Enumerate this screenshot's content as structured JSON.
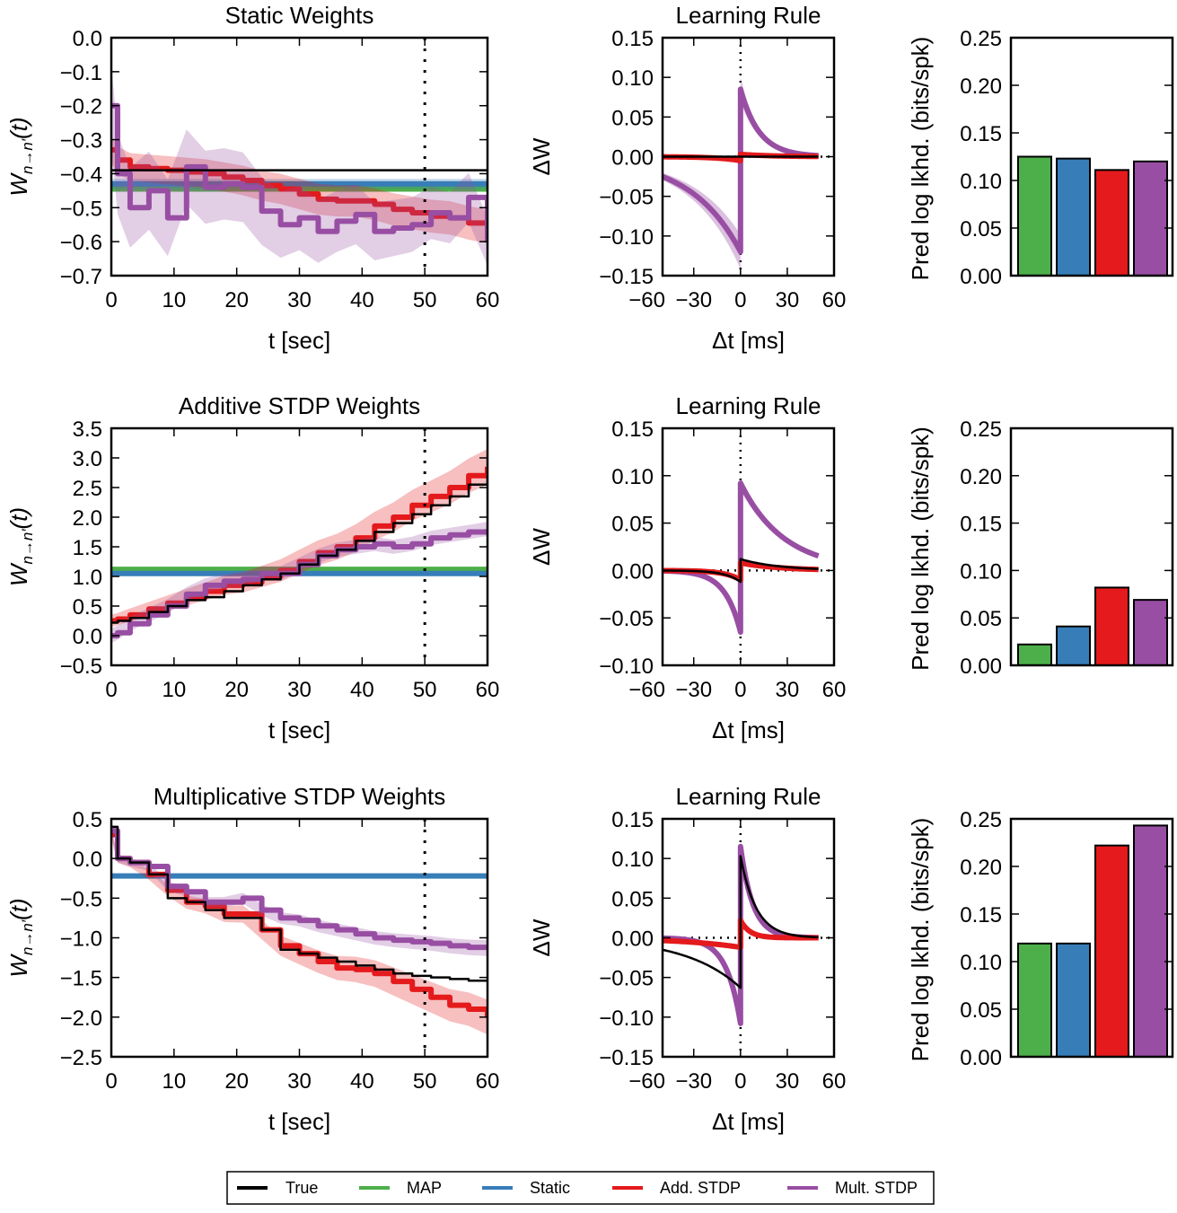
{
  "legend": {
    "items": [
      {
        "label": "True",
        "color": "#000000"
      },
      {
        "label": "MAP",
        "color": "#4daf4a"
      },
      {
        "label": "Static",
        "color": "#377eb8"
      },
      {
        "label": "Add. STDP",
        "color": "#e41a1c"
      },
      {
        "label": "Mult. STDP",
        "color": "#984ea3"
      }
    ]
  },
  "chart_data": [
    {
      "type": "line",
      "row": 0,
      "col": "weights",
      "title": "Static Weights",
      "xlabel": "t [sec]",
      "ylabel": {
        "main": "W",
        "sub": "n→n′",
        "suffix": "(t)"
      },
      "xlim": [
        0,
        60
      ],
      "ylim": [
        -0.7,
        0.0
      ],
      "xticks": [
        0,
        10,
        20,
        30,
        40,
        50,
        60
      ],
      "xticklabels": [
        "0",
        "10",
        "20",
        "30",
        "40",
        "50",
        "60"
      ],
      "yticks": [
        0,
        -0.1,
        -0.2,
        -0.3,
        -0.4,
        -0.5,
        -0.6,
        -0.7
      ],
      "yticklabels": [
        "0.0",
        "−0.1",
        "−0.2",
        "−0.3",
        "−0.4",
        "−0.5",
        "−0.6",
        "−0.7"
      ],
      "vline": 50,
      "x": [
        0,
        1,
        3,
        6,
        9,
        12,
        15,
        18,
        21,
        24,
        27,
        30,
        33,
        36,
        39,
        42,
        45,
        48,
        51,
        54,
        57,
        60
      ],
      "series": [
        {
          "name": "MAP",
          "color": "#4daf4a",
          "constant": -0.445
        },
        {
          "name": "Static",
          "color": "#377eb8",
          "constant": -0.43,
          "band": [
            0.015,
            0.015
          ]
        },
        {
          "name": "Add. STDP",
          "color": "#e41a1c",
          "band": [
            0.04,
            0.05
          ],
          "values": [
            -0.33,
            -0.36,
            -0.38,
            -0.385,
            -0.39,
            -0.395,
            -0.4,
            -0.41,
            -0.42,
            -0.435,
            -0.445,
            -0.46,
            -0.475,
            -0.48,
            -0.48,
            -0.49,
            -0.505,
            -0.515,
            -0.525,
            -0.53,
            -0.545,
            -0.555
          ]
        },
        {
          "name": "Mult. STDP",
          "color": "#984ea3",
          "band": [
            0.12,
            0.07
          ],
          "values": [
            -0.2,
            -0.4,
            -0.5,
            -0.45,
            -0.53,
            -0.38,
            -0.44,
            -0.43,
            -0.44,
            -0.51,
            -0.55,
            -0.53,
            -0.57,
            -0.54,
            -0.52,
            -0.57,
            -0.56,
            -0.55,
            -0.515,
            -0.53,
            -0.47,
            -0.6
          ]
        },
        {
          "name": "True",
          "color": "#000000",
          "constant": -0.39
        }
      ]
    },
    {
      "type": "line",
      "row": 0,
      "col": "rule",
      "title": "Learning Rule",
      "xlabel": "Δt [ms]",
      "ylabel": "ΔW",
      "xlim": [
        -50,
        60
      ],
      "ylim": [
        -0.15,
        0.15
      ],
      "xticks": [
        -60,
        -30,
        0,
        30,
        60
      ],
      "xticklabels": [
        "−60",
        "−30",
        "0",
        "30",
        "60"
      ],
      "yticks": [
        0.15,
        0.1,
        0.05,
        0.0,
        -0.05,
        -0.1,
        -0.15
      ],
      "yticklabels": [
        "0.15",
        "0.10",
        "0.05",
        "0.00",
        "−0.05",
        "−0.10",
        "−0.15"
      ],
      "series": [
        {
          "name": "Mult. STDP",
          "color": "#984ea3",
          "a_plus": 0.085,
          "tau_plus": 12,
          "a_minus": 0.12,
          "tau_minus": 32,
          "band_frac": 0.18
        },
        {
          "name": "Add. STDP",
          "color": "#e41a1c",
          "a_plus": 0.003,
          "tau_plus": 20,
          "a_minus": 0.005,
          "tau_minus": 15,
          "band_frac": 0.3
        },
        {
          "name": "True",
          "color": "#000000",
          "a_plus": 0,
          "tau_plus": 20,
          "a_minus": 0,
          "tau_minus": 20
        }
      ]
    },
    {
      "type": "bar",
      "row": 0,
      "col": "bars",
      "ylabel": "Pred log lkhd. (bits/spk)",
      "ylim": [
        0,
        0.25
      ],
      "yticks": [
        0,
        0.05,
        0.1,
        0.15,
        0.2,
        0.25
      ],
      "yticklabels": [
        "0.00",
        "0.05",
        "0.10",
        "0.15",
        "0.20",
        "0.25"
      ],
      "categories": [
        "MAP",
        "Static",
        "Add. STDP",
        "Mult. STDP"
      ],
      "colors": [
        "#4daf4a",
        "#377eb8",
        "#e41a1c",
        "#984ea3"
      ],
      "values": [
        0.125,
        0.123,
        0.111,
        0.12
      ]
    },
    {
      "type": "line",
      "row": 1,
      "col": "weights",
      "title": "Additive STDP Weights",
      "xlabel": "t [sec]",
      "ylabel": {
        "main": "W",
        "sub": "n→n′",
        "suffix": "(t)"
      },
      "xlim": [
        0,
        60
      ],
      "ylim": [
        -0.5,
        3.5
      ],
      "xticks": [
        0,
        10,
        20,
        30,
        40,
        50,
        60
      ],
      "xticklabels": [
        "0",
        "10",
        "20",
        "30",
        "40",
        "50",
        "60"
      ],
      "yticks": [
        3.5,
        3.0,
        2.5,
        2.0,
        1.5,
        1.0,
        0.5,
        0.0,
        -0.5
      ],
      "yticklabels": [
        "3.5",
        "3.0",
        "2.5",
        "2.0",
        "1.5",
        "1.0",
        "0.5",
        "0.0",
        "−0.5"
      ],
      "vline": 50,
      "x": [
        0,
        1,
        3,
        6,
        9,
        12,
        15,
        18,
        21,
        24,
        27,
        30,
        33,
        36,
        39,
        42,
        45,
        48,
        51,
        54,
        57,
        60
      ],
      "series": [
        {
          "name": "MAP",
          "color": "#4daf4a",
          "constant": 1.12
        },
        {
          "name": "Static",
          "color": "#377eb8",
          "constant": 1.05,
          "band": [
            0.03,
            0.03
          ]
        },
        {
          "name": "Add. STDP",
          "color": "#e41a1c",
          "band": [
            0.1,
            0.3
          ],
          "values": [
            0.25,
            0.28,
            0.35,
            0.45,
            0.55,
            0.65,
            0.75,
            0.85,
            0.9,
            1.0,
            1.1,
            1.25,
            1.4,
            1.5,
            1.65,
            1.85,
            2.0,
            2.2,
            2.35,
            2.5,
            2.7,
            2.85
          ]
        },
        {
          "name": "Mult. STDP",
          "color": "#984ea3",
          "band": [
            0.12,
            0.12
          ],
          "values": [
            0.0,
            0.05,
            0.2,
            0.35,
            0.5,
            0.7,
            0.85,
            0.92,
            0.95,
            1.05,
            1.05,
            1.2,
            1.35,
            1.45,
            1.5,
            1.55,
            1.5,
            1.55,
            1.65,
            1.7,
            1.75,
            1.8
          ]
        },
        {
          "name": "True",
          "color": "#000000",
          "values": [
            0.22,
            0.25,
            0.3,
            0.4,
            0.5,
            0.6,
            0.65,
            0.75,
            0.85,
            0.95,
            1.05,
            1.2,
            1.35,
            1.45,
            1.6,
            1.75,
            1.9,
            2.05,
            2.2,
            2.35,
            2.55,
            2.7
          ]
        }
      ]
    },
    {
      "type": "line",
      "row": 1,
      "col": "rule",
      "title": "Learning Rule",
      "xlabel": "Δt [ms]",
      "ylabel": "ΔW",
      "xlim": [
        -50,
        60
      ],
      "ylim": [
        -0.1,
        0.15
      ],
      "xticks": [
        -60,
        -30,
        0,
        30,
        60
      ],
      "xticklabels": [
        "−60",
        "−30",
        "0",
        "30",
        "60"
      ],
      "yticks": [
        0.15,
        0.1,
        0.05,
        0.0,
        -0.05,
        -0.1
      ],
      "yticklabels": [
        "0.15",
        "0.10",
        "0.05",
        "0.00",
        "−0.05",
        "−0.10"
      ],
      "series": [
        {
          "name": "Mult. STDP",
          "color": "#984ea3",
          "a_plus": 0.092,
          "tau_plus": 28,
          "a_minus": 0.065,
          "tau_minus": 10,
          "band_frac": 0.08
        },
        {
          "name": "Add. STDP",
          "color": "#e41a1c",
          "a_plus": 0.008,
          "tau_plus": 25,
          "a_minus": 0.01,
          "tau_minus": 10,
          "band_frac": 0.2
        },
        {
          "name": "True",
          "color": "#000000",
          "a_plus": 0.012,
          "tau_plus": 25,
          "a_minus": 0.012,
          "tau_minus": 10
        }
      ]
    },
    {
      "type": "bar",
      "row": 1,
      "col": "bars",
      "ylabel": "Pred log lkhd. (bits/spk)",
      "ylim": [
        0,
        0.25
      ],
      "yticks": [
        0,
        0.05,
        0.1,
        0.15,
        0.2,
        0.25
      ],
      "yticklabels": [
        "0.00",
        "0.05",
        "0.10",
        "0.15",
        "0.20",
        "0.25"
      ],
      "categories": [
        "MAP",
        "Static",
        "Add. STDP",
        "Mult. STDP"
      ],
      "colors": [
        "#4daf4a",
        "#377eb8",
        "#e41a1c",
        "#984ea3"
      ],
      "values": [
        0.022,
        0.041,
        0.082,
        0.069
      ]
    },
    {
      "type": "line",
      "row": 2,
      "col": "weights",
      "title": "Multiplicative STDP Weights",
      "xlabel": "t [sec]",
      "ylabel": {
        "main": "W",
        "sub": "n→n′",
        "suffix": "(t)"
      },
      "xlim": [
        0,
        60
      ],
      "ylim": [
        -2.5,
        0.5
      ],
      "xticks": [
        0,
        10,
        20,
        30,
        40,
        50,
        60
      ],
      "xticklabels": [
        "0",
        "10",
        "20",
        "30",
        "40",
        "50",
        "60"
      ],
      "yticks": [
        0.5,
        0.0,
        -0.5,
        -1.0,
        -1.5,
        -2.0,
        -2.5
      ],
      "yticklabels": [
        "0.5",
        "0.0",
        "−0.5",
        "−1.0",
        "−1.5",
        "−2.0",
        "−2.5"
      ],
      "vline": 50,
      "x": [
        0,
        1,
        3,
        6,
        9,
        12,
        15,
        18,
        21,
        24,
        27,
        30,
        33,
        36,
        39,
        42,
        45,
        48,
        51,
        54,
        57,
        60
      ],
      "series": [
        {
          "name": "Static",
          "color": "#377eb8",
          "constant": -0.22
        },
        {
          "name": "Add. STDP",
          "color": "#e41a1c",
          "band": [
            0.05,
            0.22
          ],
          "values": [
            0.3,
            0.0,
            -0.05,
            -0.2,
            -0.4,
            -0.55,
            -0.6,
            -0.7,
            -0.7,
            -0.9,
            -1.1,
            -1.2,
            -1.3,
            -1.38,
            -1.4,
            -1.45,
            -1.55,
            -1.65,
            -1.75,
            -1.85,
            -1.9,
            -2.0
          ]
        },
        {
          "name": "Mult. STDP",
          "color": "#984ea3",
          "band": [
            0.05,
            0.1
          ],
          "values": [
            0.35,
            0.0,
            -0.05,
            -0.1,
            -0.35,
            -0.42,
            -0.55,
            -0.55,
            -0.5,
            -0.65,
            -0.75,
            -0.78,
            -0.85,
            -0.9,
            -0.95,
            -1.0,
            -1.03,
            -1.05,
            -1.07,
            -1.1,
            -1.12,
            -1.13
          ]
        },
        {
          "name": "True",
          "color": "#000000",
          "values": [
            0.4,
            0.0,
            -0.05,
            -0.2,
            -0.5,
            -0.55,
            -0.65,
            -0.75,
            -0.75,
            -0.9,
            -1.15,
            -1.2,
            -1.25,
            -1.3,
            -1.35,
            -1.4,
            -1.45,
            -1.48,
            -1.5,
            -1.52,
            -1.54,
            -1.55
          ]
        }
      ]
    },
    {
      "type": "line",
      "row": 2,
      "col": "rule",
      "title": "Learning Rule",
      "xlabel": "Δt [ms]",
      "ylabel": "ΔW",
      "xlim": [
        -50,
        60
      ],
      "ylim": [
        -0.15,
        0.15
      ],
      "xticks": [
        -60,
        -30,
        0,
        30,
        60
      ],
      "xticklabels": [
        "−60",
        "−30",
        "0",
        "30",
        "60"
      ],
      "yticks": [
        0.15,
        0.1,
        0.05,
        0.0,
        -0.05,
        -0.1,
        -0.15
      ],
      "yticklabels": [
        "0.15",
        "0.10",
        "0.05",
        "0.00",
        "−0.05",
        "−0.10",
        "−0.15"
      ],
      "series": [
        {
          "name": "Mult. STDP",
          "color": "#984ea3",
          "a_plus": 0.115,
          "tau_plus": 8,
          "a_minus": 0.108,
          "tau_minus": 9,
          "band_frac": 0.06
        },
        {
          "name": "Add. STDP",
          "color": "#e41a1c",
          "a_plus": 0.022,
          "tau_plus": 6,
          "a_minus": 0.012,
          "tau_minus": 40,
          "band_frac": 0.1
        },
        {
          "name": "True",
          "color": "#000000",
          "a_plus": 0.103,
          "tau_plus": 10,
          "a_minus": 0.063,
          "tau_minus": 35
        }
      ]
    },
    {
      "type": "bar",
      "row": 2,
      "col": "bars",
      "ylabel": "Pred log lkhd. (bits/spk)",
      "ylim": [
        0,
        0.25
      ],
      "yticks": [
        0,
        0.05,
        0.1,
        0.15,
        0.2,
        0.25
      ],
      "yticklabels": [
        "0.00",
        "0.05",
        "0.10",
        "0.15",
        "0.20",
        "0.25"
      ],
      "categories": [
        "MAP",
        "Static",
        "Add. STDP",
        "Mult. STDP"
      ],
      "colors": [
        "#4daf4a",
        "#377eb8",
        "#e41a1c",
        "#984ea3"
      ],
      "values": [
        0.119,
        0.119,
        0.222,
        0.243
      ]
    }
  ]
}
